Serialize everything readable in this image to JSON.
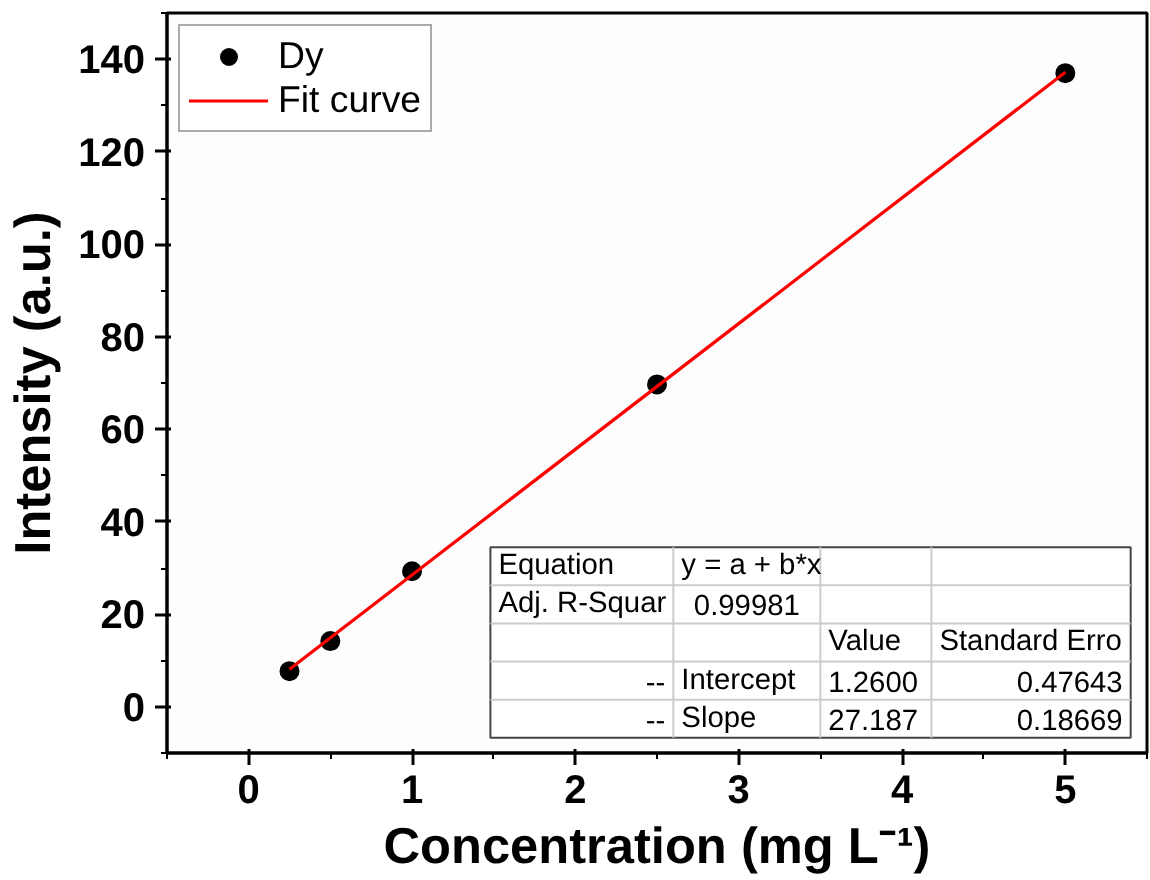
{
  "chart_data": {
    "type": "scatter",
    "xlabel": "Concentration (mg L⁻¹)",
    "ylabel": "Intensity (a.u.)",
    "series": [
      {
        "name": "Dy",
        "color": "#000000",
        "marker": "circle",
        "x": [
          0.25,
          0.5,
          1,
          2.5,
          5
        ],
        "values": [
          7.7,
          14.2,
          29.3,
          69.7,
          137
        ]
      },
      {
        "name": "Fit curve",
        "type": "line",
        "color": "#ff0000",
        "marker": "none",
        "line_style": "solid",
        "x": [
          0.25,
          5
        ],
        "values": [
          8.1,
          137.2
        ]
      }
    ],
    "xlim": [
      -0.5,
      5.5
    ],
    "ylim": [
      -10,
      150
    ],
    "xticks": [
      0,
      1,
      2,
      3,
      4,
      5
    ],
    "yticks": [
      0,
      20,
      40,
      60,
      80,
      100,
      120,
      140
    ],
    "grid": false,
    "legend": "top left",
    "annotations": [
      "Equation",
      "y = a + b*x",
      "Adj. R-Squar",
      "0.99981",
      "Value",
      "Standard Erro",
      "--",
      "Intercept",
      "1.2600",
      "0.47643",
      "--",
      "Slope",
      "27.187",
      "0.18669"
    ]
  }
}
